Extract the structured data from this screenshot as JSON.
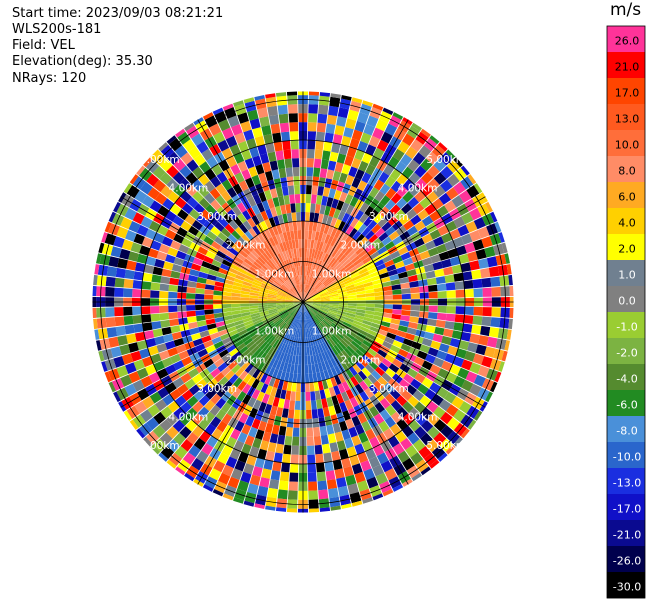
{
  "info": {
    "start_time": "Start time: 2023/09/03 08:21:21",
    "station": "WLS200s-181",
    "field": "Field: VEL",
    "elevation": "Elevation(deg): 35.30",
    "nrays": "NRays: 120"
  },
  "colorbar": {
    "unit": "m/s",
    "levels": [
      {
        "label": "26.0",
        "color": "#ff3399"
      },
      {
        "label": "21.0",
        "color": "#ff0000"
      },
      {
        "label": "17.0",
        "color": "#ff4500"
      },
      {
        "label": "13.0",
        "color": "#ff5a1f"
      },
      {
        "label": "10.0",
        "color": "#ff6e3a"
      },
      {
        "label": "8.0",
        "color": "#ff8c66"
      },
      {
        "label": "6.0",
        "color": "#ffaa22"
      },
      {
        "label": "4.0",
        "color": "#ffd000"
      },
      {
        "label": "2.0",
        "color": "#ffff00"
      },
      {
        "label": "1.0",
        "color": "#708090"
      },
      {
        "label": "0.0",
        "color": "#808080"
      },
      {
        "label": "-1.0",
        "color": "#9acd32"
      },
      {
        "label": "-2.0",
        "color": "#7cb342"
      },
      {
        "label": "-4.0",
        "color": "#558b2f"
      },
      {
        "label": "-6.0",
        "color": "#228b22"
      },
      {
        "label": "-8.0",
        "color": "#4a90d9"
      },
      {
        "label": "-10.0",
        "color": "#2a66cc"
      },
      {
        "label": "-13.0",
        "color": "#1a2ee0"
      },
      {
        "label": "-17.0",
        "color": "#1010c8"
      },
      {
        "label": "-21.0",
        "color": "#0a0a90"
      },
      {
        "label": "-26.0",
        "color": "#00004d"
      },
      {
        "label": "-30.0",
        "color": "#000000"
      }
    ]
  },
  "chart_data": {
    "type": "heatmap",
    "projection": "polar PPI",
    "n_rays": 120,
    "range_rings_km": [
      1.0,
      2.0,
      3.0,
      4.0,
      5.0
    ],
    "range_ring_labels": [
      "1.00km",
      "2.00km",
      "3.00km",
      "4.00km",
      "5.00km"
    ],
    "max_range_km": 5.2,
    "valid_data_range_km": 2.1,
    "beyond_range": "noise",
    "sectors": [
      {
        "azimuth_deg": [
          300,
          60
        ],
        "velocity_ms": [
          8,
          13
        ],
        "description": "north, receding"
      },
      {
        "azimuth_deg": [
          270,
          300
        ],
        "velocity_ms": [
          4,
          8
        ]
      },
      {
        "azimuth_deg": [
          60,
          90
        ],
        "velocity_ms": [
          2,
          6
        ]
      },
      {
        "azimuth_deg": [
          90,
          115
        ],
        "velocity_ms": [
          -2,
          0
        ]
      },
      {
        "azimuth_deg": [
          245,
          270
        ],
        "velocity_ms": [
          -2,
          0
        ]
      },
      {
        "azimuth_deg": [
          115,
          150
        ],
        "velocity_ms": [
          -6,
          -2
        ]
      },
      {
        "azimuth_deg": [
          210,
          245
        ],
        "velocity_ms": [
          -6,
          -2
        ]
      },
      {
        "azimuth_deg": [
          150,
          210
        ],
        "velocity_ms": [
          -10,
          -8
        ],
        "description": "south, approaching"
      }
    ]
  }
}
